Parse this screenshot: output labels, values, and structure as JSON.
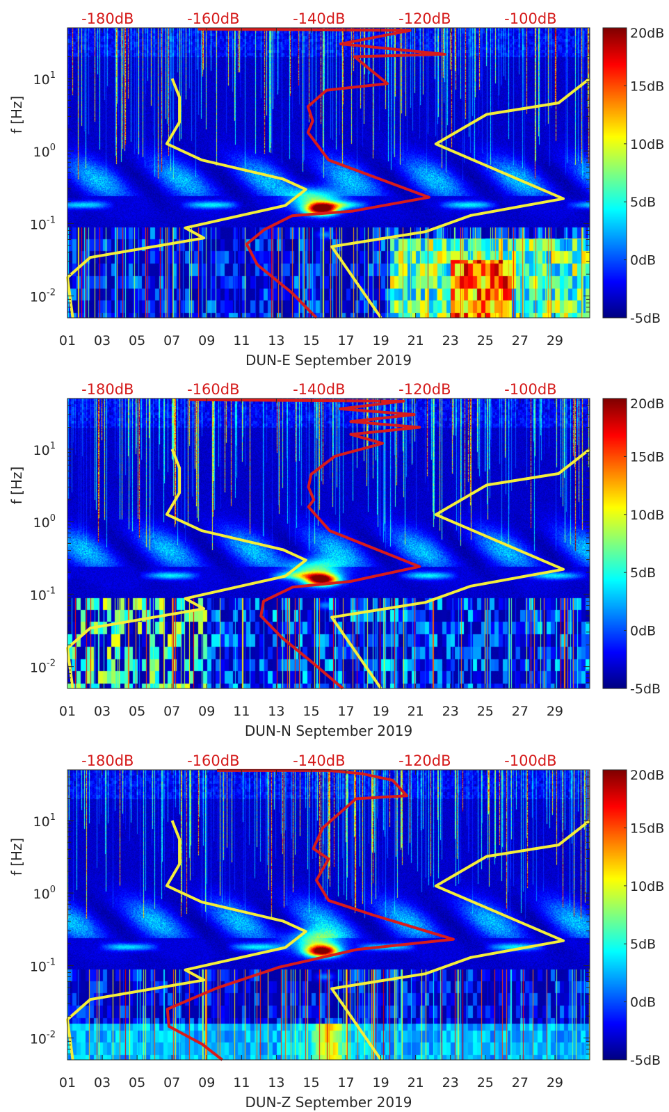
{
  "chart_data": [
    {
      "type": "heatmap",
      "xlabel": "DUN-E September 2019",
      "ylabel": "f [Hz]",
      "xlim_day": [
        1,
        31
      ],
      "ylim_hz": [
        0.005,
        50
      ],
      "yscale": "log",
      "xtick_labels": [
        "01",
        "03",
        "05",
        "07",
        "09",
        "11",
        "13",
        "15",
        "17",
        "19",
        "21",
        "23",
        "25",
        "27",
        "29"
      ],
      "ytick_labels": [
        {
          "base": "10",
          "exp": "-2",
          "value": 0.01
        },
        {
          "base": "10",
          "exp": "-1",
          "value": 0.1
        },
        {
          "base": "10",
          "exp": "0",
          "value": 1
        },
        {
          "base": "10",
          "exp": "1",
          "value": 10
        }
      ],
      "top_axis": {
        "range_db": [
          -187.6,
          -88.8
        ],
        "tick_labels": [
          {
            "label": "-180dB",
            "value": -180
          },
          {
            "label": "-160dB",
            "value": -160
          },
          {
            "label": "-140dB",
            "value": -140
          },
          {
            "label": "-120dB",
            "value": -120
          },
          {
            "label": "-100dB",
            "value": -100
          }
        ]
      },
      "colorbar": {
        "range_db": [
          -5,
          20
        ],
        "colormap": "jet",
        "tick_labels": [
          {
            "label": "20dB",
            "value": 20
          },
          {
            "label": "15dB",
            "value": 15
          },
          {
            "label": "10dB",
            "value": 10
          },
          {
            "label": "5dB",
            "value": 5
          },
          {
            "label": "0dB",
            "value": 0
          },
          {
            "label": "-5dB",
            "value": -5
          }
        ]
      },
      "lines": {
        "low_noise_model": {
          "color": "#f4ee3a",
          "points": [
            [
              -167.8,
              10
            ],
            [
              -166.4,
              5.5
            ],
            [
              -166.4,
              2.5
            ],
            [
              -168.8,
              1.26
            ],
            [
              -162.2,
              0.75
            ],
            [
              -146.8,
              0.41
            ],
            [
              -142.5,
              0.295
            ],
            [
              -146.4,
              0.177
            ],
            [
              -165.3,
              0.087
            ],
            [
              -161.8,
              0.063
            ],
            [
              -183.3,
              0.034
            ],
            [
              -187.6,
              0.018
            ],
            [
              -186.6,
              0.005
            ]
          ]
        },
        "high_noise_model": {
          "color": "#f4ee3a",
          "points": [
            [
              -88.8,
              10
            ],
            [
              -94.7,
              4.6
            ],
            [
              -108.3,
              3.2
            ],
            [
              -117.9,
              1.25
            ],
            [
              -93.8,
              0.22
            ],
            [
              -111.3,
              0.129
            ],
            [
              -119.9,
              0.077
            ],
            [
              -137.6,
              0.048
            ],
            [
              -128.3,
              0.005
            ]
          ]
        },
        "median_psd": {
          "color": "#d81b1b",
          "points": [
            [
              -162.9,
              48
            ],
            [
              -122.8,
              46
            ],
            [
              -135.9,
              30
            ],
            [
              -116.2,
              21.6
            ],
            [
              -133.3,
              20
            ],
            [
              -127.1,
              8.5
            ],
            [
              -138.6,
              6.9
            ],
            [
              -142.1,
              4.1
            ],
            [
              -141.2,
              2.6
            ],
            [
              -142.1,
              1.8
            ],
            [
              -138.2,
              0.75
            ],
            [
              -119.2,
              0.23
            ],
            [
              -133.7,
              0.148
            ],
            [
              -145.1,
              0.128
            ],
            [
              -150.4,
              0.082
            ],
            [
              -153.7,
              0.052
            ],
            [
              -151.7,
              0.027
            ],
            [
              -145.1,
              0.011
            ],
            [
              -140.5,
              0.005
            ]
          ]
        }
      }
    },
    {
      "type": "heatmap",
      "xlabel": "DUN-N September 2019",
      "ylabel": "f [Hz]",
      "xlim_day": [
        1,
        31
      ],
      "ylim_hz": [
        0.005,
        50
      ],
      "yscale": "log",
      "xtick_labels": [
        "01",
        "03",
        "05",
        "07",
        "09",
        "11",
        "13",
        "15",
        "17",
        "19",
        "21",
        "23",
        "25",
        "27",
        "29"
      ],
      "ytick_labels": [
        {
          "base": "10",
          "exp": "-2",
          "value": 0.01
        },
        {
          "base": "10",
          "exp": "-1",
          "value": 0.1
        },
        {
          "base": "10",
          "exp": "0",
          "value": 1
        },
        {
          "base": "10",
          "exp": "1",
          "value": 10
        }
      ],
      "top_axis": {
        "range_db": [
          -187.6,
          -88.8
        ],
        "tick_labels": [
          {
            "label": "-180dB",
            "value": -180
          },
          {
            "label": "-160dB",
            "value": -160
          },
          {
            "label": "-140dB",
            "value": -140
          },
          {
            "label": "-120dB",
            "value": -120
          },
          {
            "label": "-100dB",
            "value": -100
          }
        ]
      },
      "colorbar": {
        "range_db": [
          -5,
          20
        ],
        "colormap": "jet",
        "tick_labels": [
          {
            "label": "20dB",
            "value": 20
          },
          {
            "label": "15dB",
            "value": 15
          },
          {
            "label": "10dB",
            "value": 10
          },
          {
            "label": "5dB",
            "value": 5
          },
          {
            "label": "0dB",
            "value": 0
          },
          {
            "label": "-5dB",
            "value": -5
          }
        ]
      },
      "lines": {
        "low_noise_model": {
          "color": "#f4ee3a",
          "points": [
            [
              -167.8,
              10
            ],
            [
              -166.4,
              5.5
            ],
            [
              -166.4,
              2.5
            ],
            [
              -168.8,
              1.26
            ],
            [
              -162.2,
              0.75
            ],
            [
              -146.8,
              0.41
            ],
            [
              -142.5,
              0.295
            ],
            [
              -146.4,
              0.177
            ],
            [
              -165.3,
              0.087
            ],
            [
              -161.8,
              0.063
            ],
            [
              -183.3,
              0.034
            ],
            [
              -187.6,
              0.018
            ],
            [
              -186.6,
              0.005
            ]
          ]
        },
        "high_noise_model": {
          "color": "#f4ee3a",
          "points": [
            [
              -88.8,
              10
            ],
            [
              -94.7,
              4.6
            ],
            [
              -108.3,
              3.2
            ],
            [
              -117.9,
              1.25
            ],
            [
              -93.8,
              0.22
            ],
            [
              -111.3,
              0.129
            ],
            [
              -119.9,
              0.077
            ],
            [
              -137.6,
              0.048
            ],
            [
              -128.3,
              0.005
            ]
          ]
        },
        "median_psd": {
          "color": "#d81b1b",
          "points": [
            [
              -164.5,
              48
            ],
            [
              -124,
              46
            ],
            [
              -136,
              36
            ],
            [
              -122,
              30
            ],
            [
              -134,
              24
            ],
            [
              -121,
              20
            ],
            [
              -134,
              16
            ],
            [
              -128,
              12
            ],
            [
              -137,
              8
            ],
            [
              -141.5,
              4.5
            ],
            [
              -142,
              3
            ],
            [
              -141,
              2
            ],
            [
              -142,
              1.6
            ],
            [
              -138,
              0.75
            ],
            [
              -121,
              0.24
            ],
            [
              -134,
              0.15
            ],
            [
              -145,
              0.125
            ],
            [
              -150.5,
              0.08
            ],
            [
              -151,
              0.05
            ],
            [
              -147,
              0.025
            ],
            [
              -141,
              0.011
            ],
            [
              -135.5,
              0.005
            ]
          ]
        }
      }
    },
    {
      "type": "heatmap",
      "xlabel": "DUN-Z September 2019",
      "ylabel": "f [Hz]",
      "xlim_day": [
        1,
        31
      ],
      "ylim_hz": [
        0.005,
        50
      ],
      "yscale": "log",
      "xtick_labels": [
        "01",
        "03",
        "05",
        "07",
        "09",
        "11",
        "13",
        "15",
        "17",
        "19",
        "21",
        "23",
        "25",
        "27",
        "29"
      ],
      "ytick_labels": [
        {
          "base": "10",
          "exp": "-2",
          "value": 0.01
        },
        {
          "base": "10",
          "exp": "-1",
          "value": 0.1
        },
        {
          "base": "10",
          "exp": "0",
          "value": 1
        },
        {
          "base": "10",
          "exp": "1",
          "value": 10
        }
      ],
      "top_axis": {
        "range_db": [
          -187.6,
          -88.8
        ],
        "tick_labels": [
          {
            "label": "-180dB",
            "value": -180
          },
          {
            "label": "-160dB",
            "value": -160
          },
          {
            "label": "-140dB",
            "value": -140
          },
          {
            "label": "-120dB",
            "value": -120
          },
          {
            "label": "-100dB",
            "value": -100
          }
        ]
      },
      "colorbar": {
        "range_db": [
          -5,
          20
        ],
        "colormap": "jet",
        "tick_labels": [
          {
            "label": "20dB",
            "value": 20
          },
          {
            "label": "15dB",
            "value": 15
          },
          {
            "label": "10dB",
            "value": 10
          },
          {
            "label": "5dB",
            "value": 5
          },
          {
            "label": "0dB",
            "value": 0
          },
          {
            "label": "-5dB",
            "value": -5
          }
        ]
      },
      "lines": {
        "low_noise_model": {
          "color": "#f4ee3a",
          "points": [
            [
              -167.8,
              10
            ],
            [
              -166.4,
              5.5
            ],
            [
              -166.4,
              2.5
            ],
            [
              -168.8,
              1.26
            ],
            [
              -162.2,
              0.75
            ],
            [
              -146.8,
              0.41
            ],
            [
              -142.5,
              0.295
            ],
            [
              -146.4,
              0.177
            ],
            [
              -165.3,
              0.087
            ],
            [
              -161.8,
              0.063
            ],
            [
              -183.3,
              0.034
            ],
            [
              -187.6,
              0.018
            ],
            [
              -186.6,
              0.005
            ]
          ]
        },
        "high_noise_model": {
          "color": "#f4ee3a",
          "points": [
            [
              -88.8,
              10
            ],
            [
              -94.7,
              4.6
            ],
            [
              -108.3,
              3.2
            ],
            [
              -117.9,
              1.25
            ],
            [
              -93.8,
              0.22
            ],
            [
              -111.3,
              0.129
            ],
            [
              -119.9,
              0.077
            ],
            [
              -137.6,
              0.048
            ],
            [
              -128.3,
              0.005
            ]
          ]
        },
        "median_psd": {
          "color": "#d81b1b",
          "points": [
            [
              -159.3,
              49
            ],
            [
              -138.2,
              49
            ],
            [
              -131.7,
              44
            ],
            [
              -126.1,
              36
            ],
            [
              -123.4,
              22
            ],
            [
              -133,
              20
            ],
            [
              -139.3,
              7.9
            ],
            [
              -141.1,
              4.1
            ],
            [
              -138.2,
              2.95
            ],
            [
              -140.5,
              1.5
            ],
            [
              -138.2,
              0.79
            ],
            [
              -129.9,
              0.5
            ],
            [
              -114.6,
              0.23
            ],
            [
              -132.9,
              0.166
            ],
            [
              -147.5,
              0.095
            ],
            [
              -159.3,
              0.049
            ],
            [
              -168.7,
              0.025
            ],
            [
              -168.4,
              0.0145
            ],
            [
              -162.2,
              0.0083
            ],
            [
              -158.3,
              0.005
            ]
          ]
        }
      }
    }
  ]
}
